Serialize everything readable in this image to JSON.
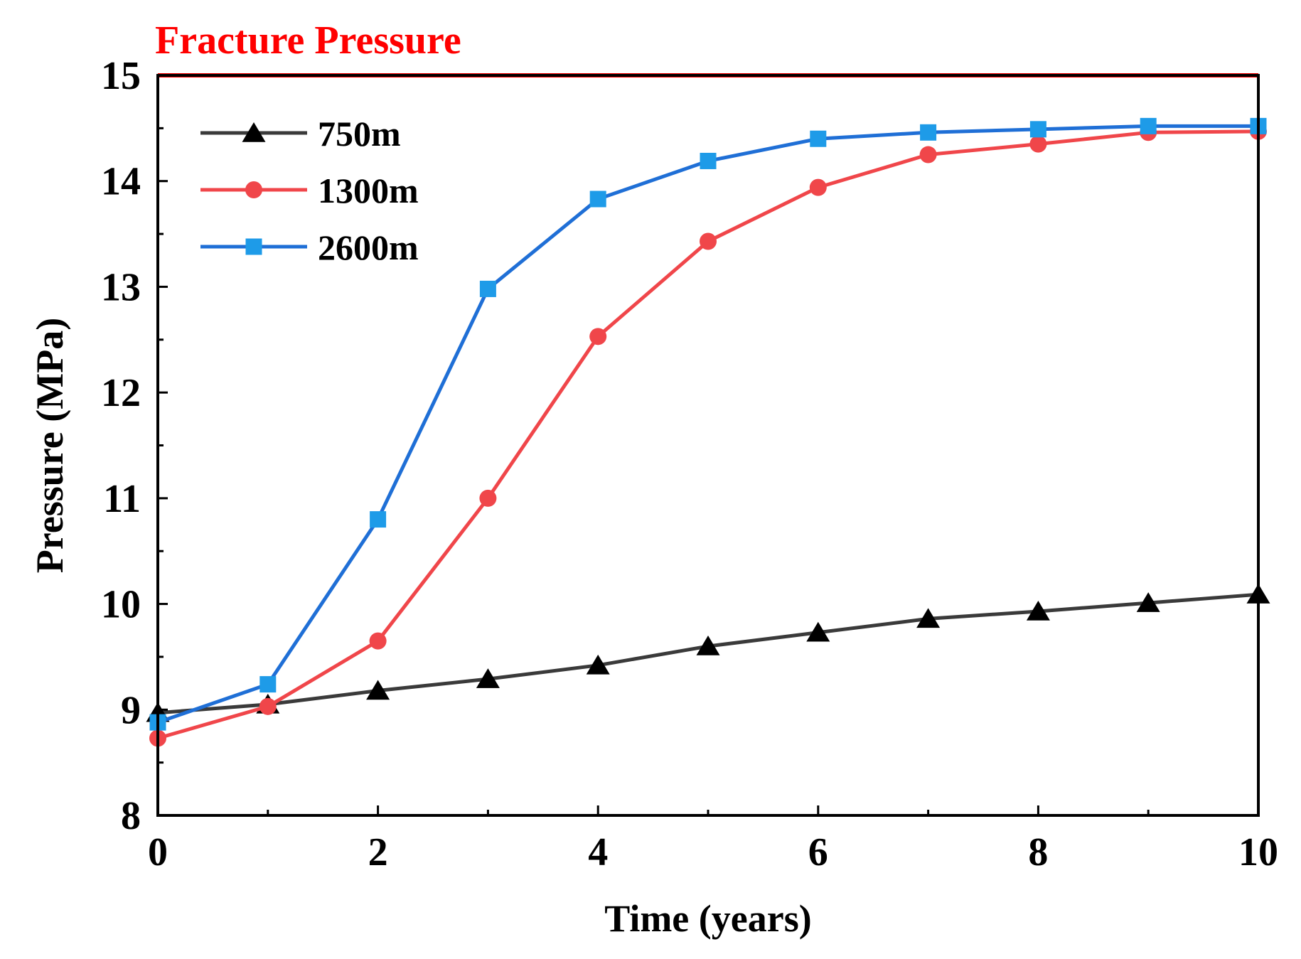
{
  "chart_data": {
    "type": "line",
    "title": "",
    "xlabel": "Time (years)",
    "ylabel": "Pressure (MPa)",
    "xlim": [
      0,
      10
    ],
    "ylim": [
      8,
      15
    ],
    "x_ticks": [
      0,
      2,
      4,
      6,
      8,
      10
    ],
    "y_ticks": [
      8,
      9,
      10,
      11,
      12,
      13,
      14,
      15
    ],
    "grid": false,
    "legend_position": "top-left",
    "x": [
      0,
      1,
      2,
      3,
      4,
      5,
      6,
      7,
      8,
      9,
      10
    ],
    "series": [
      {
        "name": "750m",
        "color": "#3a3a3a",
        "marker_color": "#000000",
        "marker": "triangle",
        "values": [
          8.97,
          9.05,
          9.18,
          9.29,
          9.42,
          9.6,
          9.73,
          9.86,
          9.93,
          10.01,
          10.09
        ]
      },
      {
        "name": "1300m",
        "color": "#f0464a",
        "marker_color": "#f0464a",
        "marker": "circle",
        "values": [
          8.73,
          9.03,
          9.65,
          11.0,
          12.53,
          13.43,
          13.94,
          14.25,
          14.35,
          14.46,
          14.47
        ]
      },
      {
        "name": "2600m",
        "color": "#1f6fd6",
        "marker_color": "#1e9be8",
        "marker": "square",
        "values": [
          8.88,
          9.24,
          10.8,
          12.98,
          13.83,
          14.19,
          14.4,
          14.46,
          14.49,
          14.52,
          14.52
        ]
      }
    ],
    "reference_line": {
      "label": "Fracture Pressure",
      "value": 15,
      "color": "#ff0000"
    }
  }
}
